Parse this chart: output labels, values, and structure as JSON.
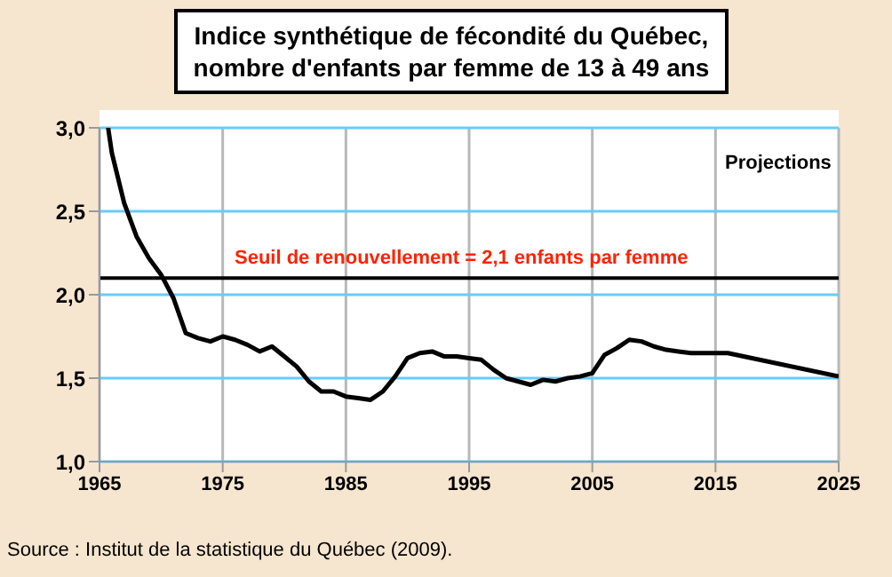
{
  "chart_data": {
    "type": "line",
    "title": "Indice synthétique de fécondité du Québec, nombre d'enfants par femme de 13 à 49 ans",
    "x": [
      1965.7,
      1966,
      1967,
      1968,
      1969,
      1970,
      1971,
      1972,
      1973,
      1974,
      1975,
      1976,
      1977,
      1978,
      1979,
      1980,
      1981,
      1982,
      1983,
      1984,
      1985,
      1986,
      1987,
      1988,
      1989,
      1990,
      1991,
      1992,
      1993,
      1994,
      1995,
      1996,
      1997,
      1998,
      1999,
      2000,
      2001,
      2002,
      2003,
      2004,
      2005,
      2006,
      2007,
      2008,
      2009,
      2010,
      2011,
      2012,
      2013,
      2014,
      2015,
      2016,
      2025
    ],
    "series": [
      {
        "color": "#000000",
        "values": [
          3.0,
          2.85,
          2.55,
          2.35,
          2.22,
          2.12,
          1.98,
          1.77,
          1.74,
          1.72,
          1.75,
          1.73,
          1.7,
          1.66,
          1.69,
          1.63,
          1.57,
          1.48,
          1.42,
          1.42,
          1.39,
          1.38,
          1.37,
          1.42,
          1.51,
          1.62,
          1.65,
          1.66,
          1.63,
          1.63,
          1.62,
          1.61,
          1.55,
          1.5,
          1.48,
          1.46,
          1.49,
          1.48,
          1.5,
          1.51,
          1.53,
          1.64,
          1.68,
          1.73,
          1.72,
          1.69,
          1.67,
          1.66,
          1.65,
          1.65,
          1.65,
          1.65,
          1.51
        ]
      }
    ],
    "xlim": [
      1965,
      2025
    ],
    "xticks": [
      1965,
      1975,
      1985,
      1995,
      2005,
      2015,
      2025
    ],
    "ylim": [
      1,
      3
    ],
    "yticks": [
      {
        "value": 1,
        "label": "1,0"
      },
      {
        "value": 1.5,
        "label": "1,5"
      },
      {
        "value": 2,
        "label": "2,0"
      },
      {
        "value": 2.5,
        "label": "2,5"
      },
      {
        "value": 3,
        "label": "3,0"
      }
    ],
    "grid": true,
    "marker": "none",
    "line_style": "solid",
    "ref_lines": [
      {
        "axis": "y",
        "value": 2.1,
        "label": "Seuil de renouvellement = 2,1 enfants par femme",
        "color": "#000000"
      }
    ],
    "annotations": [
      "Projections",
      "Source : Institut de la statistique du Québec (2009)."
    ]
  }
}
